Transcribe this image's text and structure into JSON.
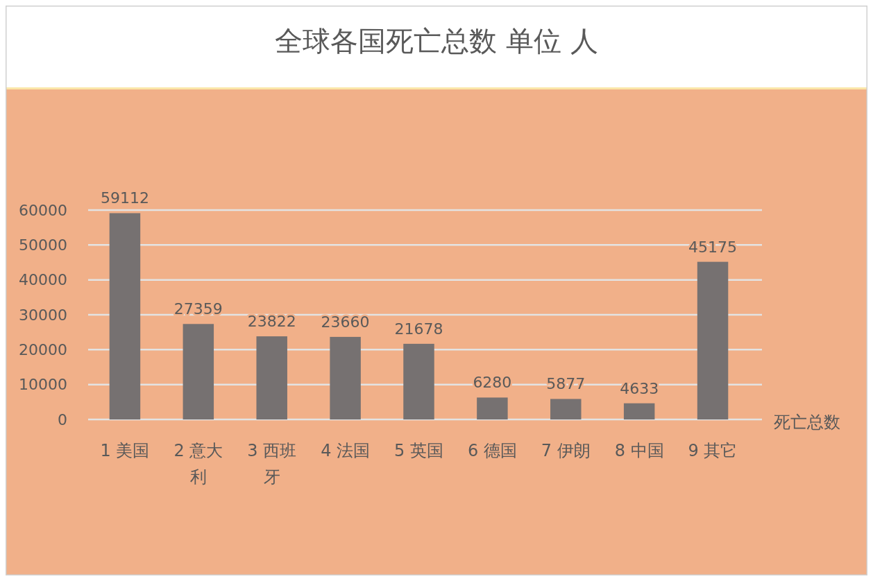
{
  "chart_data": {
    "type": "bar",
    "title": "全球各国死亡总数 单位 人",
    "categories": [
      "1 美国",
      "2 意大利",
      "3 西班牙",
      "4 法国",
      "5 英国",
      "6 德国",
      "7 伊朗",
      "8 中国",
      "9 其它"
    ],
    "series": [
      {
        "name": "死亡总数",
        "color": "#767171",
        "values": [
          59112,
          27359,
          23822,
          23660,
          21678,
          6280,
          5877,
          4633,
          45175
        ]
      }
    ],
    "ylim": [
      0,
      60000
    ],
    "yticks": [
      0,
      10000,
      20000,
      30000,
      40000,
      50000,
      60000
    ],
    "grid": "y",
    "legend": "right",
    "data_labels": true
  }
}
